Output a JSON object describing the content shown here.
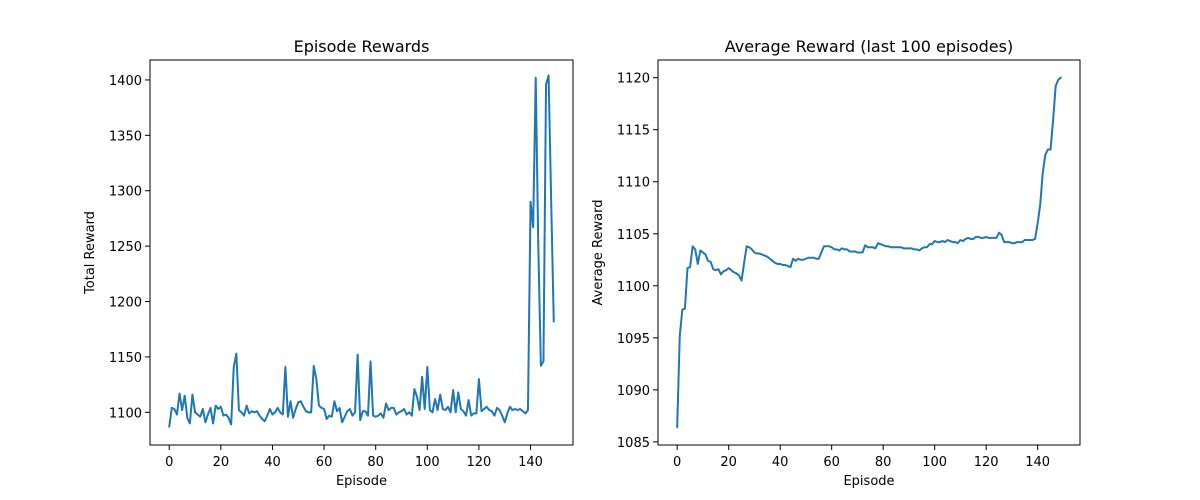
{
  "chart_data": [
    {
      "type": "line",
      "title": "Episode Rewards",
      "xlabel": "Episode",
      "ylabel": "Total Reward",
      "xlim": [
        -7.45,
        156.45
      ],
      "ylim": [
        1070.5,
        1418
      ],
      "xticks": [
        0,
        20,
        40,
        60,
        80,
        100,
        120,
        140
      ],
      "yticks": [
        1100,
        1150,
        1200,
        1250,
        1300,
        1350,
        1400
      ],
      "grid": false,
      "color": "#1f77b4",
      "series": [
        {
          "x": [
            0,
            1,
            2,
            3,
            4,
            5,
            6,
            7,
            8,
            9,
            10,
            11,
            12,
            13,
            14,
            15,
            16,
            17,
            18,
            19,
            20,
            21,
            22,
            23,
            24,
            25,
            26,
            27,
            28,
            29,
            30,
            31,
            32,
            33,
            34,
            35,
            36,
            37,
            38,
            39,
            40,
            41,
            42,
            43,
            44,
            45,
            46,
            47,
            48,
            49,
            50,
            51,
            52,
            53,
            54,
            55,
            56,
            57,
            58,
            59,
            60,
            61,
            62,
            63,
            64,
            65,
            66,
            67,
            68,
            69,
            70,
            71,
            72,
            73,
            74,
            75,
            76,
            77,
            78,
            79,
            80,
            81,
            82,
            83,
            84,
            85,
            86,
            87,
            88,
            89,
            90,
            91,
            92,
            93,
            94,
            95,
            96,
            97,
            98,
            99,
            100,
            101,
            102,
            103,
            104,
            105,
            106,
            107,
            108,
            109,
            110,
            111,
            112,
            113,
            114,
            115,
            116,
            117,
            118,
            119,
            120,
            121,
            122,
            123,
            124,
            125,
            126,
            127,
            128,
            129,
            130,
            131,
            132,
            133,
            134,
            135,
            136,
            137,
            138,
            139,
            140,
            141,
            142,
            143,
            144,
            145,
            146,
            147,
            148,
            149
          ],
          "values": [
            1087,
            1104,
            1103,
            1098,
            1117,
            1102,
            1115,
            1095,
            1090,
            1116,
            1100,
            1098,
            1096,
            1103,
            1091,
            1098,
            1104,
            1090,
            1106,
            1103,
            1105,
            1097,
            1098,
            1095,
            1089,
            1141,
            1153,
            1102,
            1100,
            1097,
            1106,
            1099,
            1101,
            1100,
            1101,
            1097,
            1094,
            1092,
            1097,
            1103,
            1098,
            1100,
            1104,
            1100,
            1098,
            1141,
            1096,
            1110,
            1095,
            1103,
            1109,
            1110,
            1105,
            1101,
            1100,
            1100,
            1142,
            1130,
            1106,
            1104,
            1103,
            1094,
            1097,
            1096,
            1110,
            1101,
            1104,
            1091,
            1096,
            1101,
            1103,
            1097,
            1100,
            1152,
            1093,
            1101,
            1101,
            1097,
            1146,
            1097,
            1096,
            1097,
            1099,
            1095,
            1108,
            1102,
            1104,
            1104,
            1098,
            1100,
            1101,
            1103,
            1098,
            1100,
            1097,
            1121,
            1114,
            1102,
            1132,
            1103,
            1141,
            1102,
            1100,
            1112,
            1102,
            1116,
            1103,
            1102,
            1105,
            1100,
            1120,
            1100,
            1118,
            1103,
            1101,
            1097,
            1111,
            1097,
            1099,
            1099,
            1130,
            1101,
            1103,
            1105,
            1102,
            1101,
            1097,
            1104,
            1102,
            1097,
            1091,
            1099,
            1105,
            1102,
            1103,
            1102,
            1103,
            1101,
            1099,
            1102,
            1290,
            1267,
            1402,
            1250,
            1142,
            1146,
            1396,
            1404,
            1290,
            1182
          ]
        }
      ]
    },
    {
      "type": "line",
      "title": "Average Reward (last 100 episodes)",
      "xlabel": "Episode",
      "ylabel": "Average Reward",
      "xlim": [
        -7.45,
        156.45
      ],
      "ylim": [
        1084.7,
        1121.7
      ],
      "xticks": [
        0,
        20,
        40,
        60,
        80,
        100,
        120,
        140
      ],
      "yticks": [
        1085,
        1090,
        1095,
        1100,
        1105,
        1110,
        1115,
        1120
      ],
      "grid": false,
      "color": "#1f77b4",
      "series": [
        {
          "x": [
            0,
            1,
            2,
            3,
            4,
            5,
            6,
            7,
            8,
            9,
            10,
            11,
            12,
            13,
            14,
            15,
            16,
            17,
            18,
            19,
            20,
            21,
            22,
            23,
            24,
            25,
            26,
            27,
            28,
            29,
            30,
            31,
            32,
            33,
            34,
            35,
            36,
            37,
            38,
            39,
            40,
            41,
            42,
            43,
            44,
            45,
            46,
            47,
            48,
            49,
            50,
            51,
            52,
            53,
            54,
            55,
            56,
            57,
            58,
            59,
            60,
            61,
            62,
            63,
            64,
            65,
            66,
            67,
            68,
            69,
            70,
            71,
            72,
            73,
            74,
            75,
            76,
            77,
            78,
            79,
            80,
            81,
            82,
            83,
            84,
            85,
            86,
            87,
            88,
            89,
            90,
            91,
            92,
            93,
            94,
            95,
            96,
            97,
            98,
            99,
            100,
            101,
            102,
            103,
            104,
            105,
            106,
            107,
            108,
            109,
            110,
            111,
            112,
            113,
            114,
            115,
            116,
            117,
            118,
            119,
            120,
            121,
            122,
            123,
            124,
            125,
            126,
            127,
            128,
            129,
            130,
            131,
            132,
            133,
            134,
            135,
            136,
            137,
            138,
            139,
            140,
            141,
            142,
            143,
            144,
            145,
            146,
            147,
            148,
            149
          ],
          "values": [
            1086.4,
            1095.2,
            1097.7,
            1097.8,
            1101.7,
            1101.8,
            1103.8,
            1103.5,
            1102.1,
            1103.4,
            1103.2,
            1103.0,
            1102.4,
            1102.3,
            1101.6,
            1101.5,
            1101.6,
            1101.1,
            1101.4,
            1101.5,
            1101.7,
            1101.5,
            1101.3,
            1101.2,
            1101.0,
            1100.5,
            1102.2,
            1103.8,
            1103.7,
            1103.5,
            1103.2,
            1103.1,
            1103.1,
            1103.0,
            1102.9,
            1102.8,
            1102.6,
            1102.4,
            1102.2,
            1102.1,
            1102.1,
            1102.0,
            1102.0,
            1101.9,
            1101.8,
            1102.6,
            1102.4,
            1102.6,
            1102.5,
            1102.5,
            1102.6,
            1102.7,
            1102.7,
            1102.7,
            1102.6,
            1102.6,
            1103.2,
            1103.8,
            1103.8,
            1103.8,
            1103.7,
            1103.5,
            1103.5,
            1103.4,
            1103.6,
            1103.5,
            1103.5,
            1103.3,
            1103.3,
            1103.3,
            1103.2,
            1103.2,
            1103.2,
            1103.9,
            1103.7,
            1103.7,
            1103.7,
            1103.6,
            1104.1,
            1104.0,
            1103.9,
            1103.8,
            1103.8,
            1103.7,
            1103.7,
            1103.7,
            1103.7,
            1103.7,
            1103.6,
            1103.6,
            1103.6,
            1103.6,
            1103.5,
            1103.5,
            1103.4,
            1103.6,
            1103.7,
            1103.7,
            1104.0,
            1104.0,
            1104.3,
            1104.2,
            1104.2,
            1104.3,
            1104.2,
            1104.4,
            1104.3,
            1104.2,
            1104.2,
            1104.1,
            1104.4,
            1104.3,
            1104.5,
            1104.6,
            1104.5,
            1104.5,
            1104.7,
            1104.7,
            1104.6,
            1104.6,
            1104.7,
            1104.6,
            1104.6,
            1104.6,
            1104.6,
            1105.1,
            1104.9,
            1104.2,
            1104.2,
            1104.2,
            1104.1,
            1104.1,
            1104.2,
            1104.2,
            1104.2,
            1104.4,
            1104.4,
            1104.4,
            1104.4,
            1104.5,
            1106.0,
            1107.8,
            1110.9,
            1112.6,
            1113.1,
            1113.1,
            1115.9,
            1119.2,
            1119.8,
            1120.0
          ]
        }
      ]
    }
  ]
}
